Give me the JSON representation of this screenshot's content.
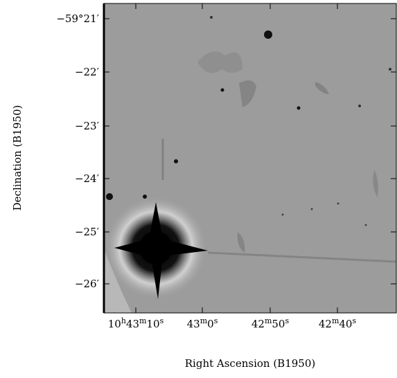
{
  "image": {
    "y_axis": {
      "label": "Declination (B1950)",
      "ticks": [
        "−59°21′",
        "−22′",
        "−23′",
        "−24′",
        "−25′",
        "−26′"
      ]
    },
    "x_axis": {
      "label": "Right Ascension (B1950)",
      "ticks": [
        [
          "10",
          "h",
          "43",
          "m",
          "10",
          "s"
        ],
        [
          "43",
          "m",
          "0",
          "s"
        ],
        [
          "42",
          "m",
          "50",
          "s"
        ],
        [
          "42",
          "m",
          "40",
          "s"
        ]
      ]
    }
  }
}
